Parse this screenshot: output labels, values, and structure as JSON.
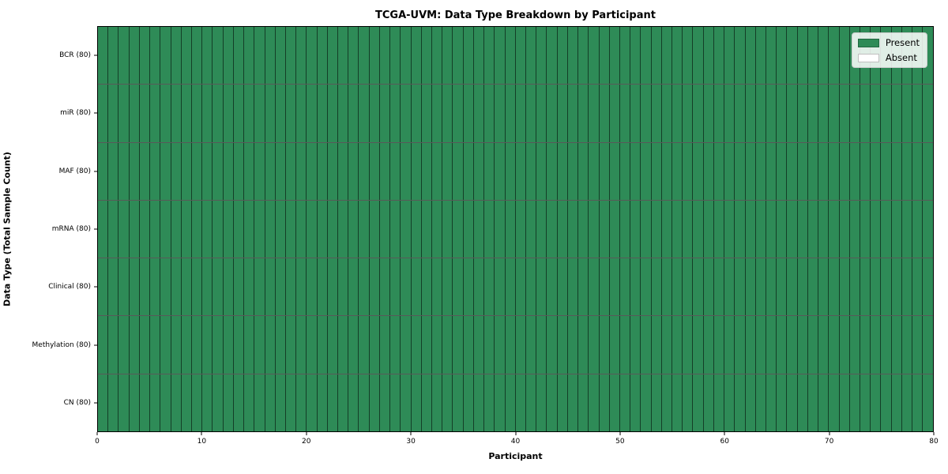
{
  "chart_data": {
    "type": "heatmap",
    "title": "TCGA-UVM: Data Type Breakdown by Participant",
    "xlabel": "Participant",
    "ylabel": "Data Type (Total Sample Count)",
    "x_ticks": [
      0,
      10,
      20,
      30,
      40,
      50,
      60,
      70,
      80
    ],
    "xlim": [
      0,
      80
    ],
    "n_participants": 80,
    "rows": [
      {
        "label": "BCR (80)",
        "total": 80,
        "present_count": 80
      },
      {
        "label": "miR (80)",
        "total": 80,
        "present_count": 80
      },
      {
        "label": "MAF (80)",
        "total": 80,
        "present_count": 80
      },
      {
        "label": "mRNA (80)",
        "total": 80,
        "present_count": 80
      },
      {
        "label": "Clinical (80)",
        "total": 80,
        "present_count": 80
      },
      {
        "label": "Methylation (80)",
        "total": 80,
        "present_count": 80
      },
      {
        "label": "CN (80)",
        "total": 80,
        "present_count": 80
      }
    ],
    "legend": [
      {
        "label": "Present",
        "color": "#2E8B57"
      },
      {
        "label": "Absent",
        "color": "#FFFFFF"
      }
    ],
    "colors": {
      "present": "#2E8B57",
      "absent": "#FFFFFF",
      "grid_line": "rgba(0,0,0,0.55)"
    },
    "legend_position": "upper right",
    "grid": true
  }
}
